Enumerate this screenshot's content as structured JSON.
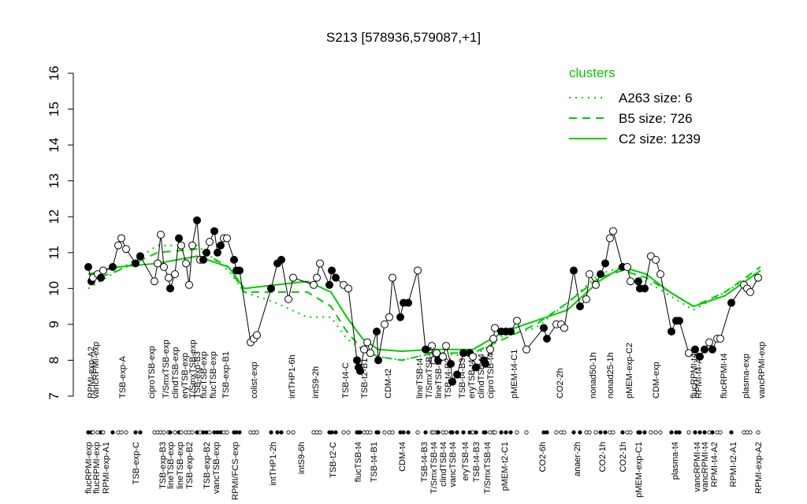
{
  "chart_data": {
    "type": "cluster-profile",
    "title": "S213 [578936,579087,+1]",
    "ylim": [
      7,
      16
    ],
    "yticks": [
      7,
      8,
      9,
      10,
      11,
      12,
      13,
      14,
      15,
      16
    ],
    "xlim": [
      0,
      87
    ],
    "legend_title": "clusters",
    "samples": {
      "x": [
        1.2,
        1.6,
        1.8,
        2.4,
        2.8,
        3.1,
        4.3,
        5.0,
        5.4,
        6.0,
        7.2,
        7.8,
        9.6,
        10.0,
        10.4,
        10.8,
        11.4,
        11.6,
        12.2,
        12.7,
        13.0,
        13.6,
        14.0,
        14.4,
        15.0,
        15.4,
        15.8,
        16.2,
        16.6,
        17.2,
        17.6,
        18.0,
        18.4,
        18.8,
        19.7,
        20.0,
        20.4,
        21.8,
        22.2,
        22.6,
        24.4,
        25.2,
        25.7,
        26.6,
        27.2,
        29.8,
        30.2,
        30.6,
        31.8,
        32.1,
        32.6,
        33.6,
        34.2,
        35.3,
        35.5,
        35.7,
        36.2,
        36.6,
        37.0,
        37.8,
        38.0,
        38.8,
        39.4,
        39.8,
        40.8,
        41.2,
        41.8,
        43.0,
        44.0,
        44.8,
        45.0,
        45.4,
        45.6,
        46.2,
        46.6,
        47.2,
        47.4,
        48.0,
        48.8,
        49.6,
        50.0,
        50.4,
        51.4,
        51.6,
        52.2,
        52.6,
        52.8,
        53.6,
        54.2,
        54.8,
        55.6,
        56.8,
        59.0,
        59.4,
        60.6,
        61.2,
        61.6,
        62.8,
        63.6,
        64.4,
        64.8,
        65.6,
        66.2,
        66.8,
        67.4,
        67.8,
        69.0,
        69.6,
        70.0,
        71.0,
        71.2,
        71.8,
        72.6,
        73.2,
        73.8,
        75.2,
        75.8,
        76.2,
        77.4,
        78.2,
        78.8,
        79.4,
        80.0,
        80.4,
        81.0,
        81.4,
        82.8,
        84.4,
        84.8,
        85.2,
        86.2
      ],
      "y": [
        10.6,
        10.2,
        10.3,
        10.4,
        10.3,
        10.5,
        10.6,
        11.2,
        11.4,
        11.1,
        10.7,
        10.9,
        10.2,
        10.7,
        11.5,
        10.6,
        10.3,
        10.0,
        10.4,
        11.4,
        11.2,
        10.7,
        10.1,
        11.2,
        11.9,
        10.8,
        10.8,
        11.0,
        11.3,
        11.6,
        11.0,
        11.2,
        11.4,
        11.4,
        10.8,
        10.5,
        10.5,
        8.5,
        8.6,
        8.7,
        10.0,
        10.7,
        10.8,
        9.7,
        10.3,
        10.1,
        10.3,
        10.7,
        10.1,
        10.5,
        10.3,
        10.1,
        10.0,
        8.0,
        7.8,
        7.7,
        8.3,
        8.5,
        8.2,
        8.8,
        8.0,
        9.0,
        9.2,
        10.3,
        9.2,
        9.6,
        9.6,
        10.5,
        8.3,
        8.4,
        8.0,
        8.2,
        8.0,
        8.1,
        8.4,
        7.9,
        7.4,
        7.6,
        8.2,
        8.2,
        8.1,
        7.8,
        8.0,
        7.9,
        8.3,
        8.6,
        8.9,
        8.8,
        8.8,
        8.8,
        9.1,
        8.3,
        8.9,
        8.6,
        9.0,
        9.0,
        8.9,
        10.5,
        9.5,
        9.7,
        10.4,
        10.1,
        10.4,
        10.7,
        11.4,
        11.6,
        10.6,
        10.6,
        10.2,
        10.2,
        10.0,
        10.0,
        10.9,
        10.8,
        10.4,
        8.8,
        9.1,
        9.1,
        8.2,
        8.3,
        8.1,
        8.3,
        8.5,
        8.3,
        8.6,
        8.6,
        9.6,
        10.1,
        10.0,
        9.9,
        10.3
      ],
      "filled": [
        1,
        1,
        0,
        0,
        1,
        0,
        1,
        0,
        0,
        0,
        1,
        1,
        0,
        0,
        0,
        0,
        0,
        1,
        0,
        1,
        0,
        0,
        0,
        0,
        1,
        0,
        1,
        1,
        0,
        1,
        1,
        1,
        0,
        0,
        1,
        1,
        1,
        0,
        0,
        0,
        1,
        1,
        1,
        0,
        0,
        0,
        0,
        0,
        1,
        1,
        1,
        0,
        0,
        1,
        1,
        1,
        0,
        0,
        0,
        1,
        1,
        0,
        0,
        0,
        1,
        1,
        1,
        0,
        1,
        0,
        0,
        0,
        1,
        0,
        0,
        1,
        1,
        1,
        1,
        1,
        0,
        1,
        1,
        1,
        0,
        0,
        0,
        1,
        1,
        1,
        0,
        0,
        1,
        1,
        0,
        0,
        0,
        1,
        1,
        0,
        0,
        0,
        1,
        1,
        0,
        0,
        1,
        0,
        0,
        1,
        1,
        1,
        0,
        0,
        0,
        1,
        1,
        1,
        0,
        1,
        1,
        1,
        0,
        1,
        0,
        0,
        1,
        0,
        0,
        0,
        0
      ]
    },
    "cluster_x": [
      1.2,
      5.0,
      10.0,
      15.0,
      19.0,
      21.0,
      25.0,
      29.0,
      32.0,
      34.0,
      36.0,
      38.0,
      41.0,
      45.0,
      50.0,
      54.0,
      58.0,
      62.0,
      66.0,
      69.0,
      72.0,
      75.0,
      78.0,
      82.0,
      86.5
    ],
    "series": [
      {
        "name": "A263 size: 6",
        "color": "#00cc00",
        "style": "dotted",
        "values": [
          10.0,
          10.5,
          11.2,
          11.2,
          10.5,
          9.9,
          9.6,
          9.2,
          9.2,
          8.6,
          8.3,
          8.1,
          8.0,
          8.2,
          8.1,
          8.7,
          8.9,
          9.6,
          10.4,
          10.6,
          10.2,
          9.8,
          9.4,
          9.9,
          10.5
        ]
      },
      {
        "name": "B5 size: 726",
        "color": "#00cc00",
        "style": "dashed",
        "values": [
          10.2,
          10.5,
          11.0,
          11.1,
          10.6,
          9.9,
          9.9,
          9.9,
          9.5,
          8.8,
          8.3,
          8.1,
          8.0,
          8.2,
          8.2,
          8.6,
          9.0,
          9.6,
          10.3,
          10.5,
          10.3,
          9.9,
          9.5,
          9.9,
          10.6
        ]
      },
      {
        "name": "C2 size: 1239",
        "color": "#00cc00",
        "style": "solid",
        "values": [
          10.4,
          10.6,
          10.7,
          10.9,
          10.6,
          10.0,
          10.1,
          10.2,
          9.9,
          9.2,
          8.6,
          8.3,
          8.25,
          8.3,
          8.3,
          8.8,
          9.1,
          9.4,
          10.2,
          10.6,
          10.4,
          9.9,
          9.5,
          9.8,
          10.5
        ]
      }
    ],
    "top_labels": {
      "x": [
        1.5,
        2.1,
        5.5,
        9.2,
        11.0,
        12.2,
        13.4,
        14.4,
        15.0,
        15.8,
        17.0,
        18.6,
        22.2,
        27.0,
        30.0,
        33.8,
        36.2,
        39.2,
        43.2,
        44.4,
        45.6,
        46.8,
        48.6,
        49.8,
        51.0,
        52.2,
        55.2,
        61.0,
        65.2,
        67.4,
        69.8,
        73.2,
        78.0,
        78.6,
        81.8,
        84.6,
        86.6
      ],
      "labels": [
        "RPMI-exp-A2",
        "vancRPMI-exp",
        "TSB-exp-A",
        "ciproTSB-exp",
        "T/SmxTSB-exp",
        "clindTSB-exp",
        "eryTSB-exp",
        "T/SmxTSB-exp",
        "TSB-exp-B3",
        "flucTSB-exp",
        "flucTSB-exp",
        "TSB-exp-B1",
        "colist-exp",
        "intTHP1-6h",
        "intS9-2h",
        "TSB-t4-C",
        "TSB-t2-B1",
        "CDM-t2",
        "lineTSB-t4",
        "T/SmxTSB-t4",
        "lineTSB-t4",
        "TSB-t4-B2",
        "TSB-t4-B3",
        "eryTSB-t4",
        "clindTSB-t4",
        "ciproTSB-t4",
        "pMEM-t4-C1",
        "CO2-2h",
        "nonad50-1h",
        "nonad25-1h",
        "pMEM-exp-C2",
        "CDM-exp",
        "flucRPMI-t4",
        "RPMI-t4-A2",
        "flucRPMI-t4",
        "plasma-exp",
        "vancRPMI-exp"
      ]
    },
    "bottom_labels": {
      "x": [
        1.2,
        2.2,
        3.4,
        7.2,
        10.6,
        11.6,
        12.8,
        14.0,
        16.2,
        17.4,
        19.8,
        24.6,
        28.2,
        32.2,
        35.4,
        37.4,
        41.0,
        43.8,
        45.0,
        46.2,
        47.4,
        49.0,
        50.4,
        51.8,
        54.0,
        58.8,
        63.2,
        66.4,
        69.0,
        71.0,
        75.6,
        78.4,
        79.4,
        80.6,
        83.0,
        86.2
      ],
      "labels": [
        "flucRPMI-exp",
        "flucRPMI-exp",
        "RPMI-exp-A1",
        "TSB-exp-C",
        "TSB-exp-B3",
        "lineTSB-exp",
        "lineTSB-exp",
        "TSB-exp-B2",
        "TSB-exp-B2",
        "vancTSB-exp",
        "RPMI/FCS-exp",
        "intTHP1-2h",
        "intS9-6h",
        "TSB-t2-C",
        "flucTSB-t4",
        "TSB-t4-B1",
        "CDM-t4",
        "TSB-t4-B3",
        "T/SmxTSB-t4",
        "clindTSB-t4",
        "vancTSB-t4",
        "eryTSB-t4",
        "TSB-t4-B3",
        "T/SmxTSB-t4",
        "pMEM-t2-C1",
        "CO2-6h",
        "anaer-2h",
        "CO2-1h",
        "CO2-1h",
        "pMEM-exp-C1",
        "plasma-t4",
        "vancRPMI-t4",
        "vancRPMI-t4",
        "RPMI-t4-A2",
        "RPMI-t2-A1",
        "RPMI-exp-A2"
      ]
    }
  }
}
